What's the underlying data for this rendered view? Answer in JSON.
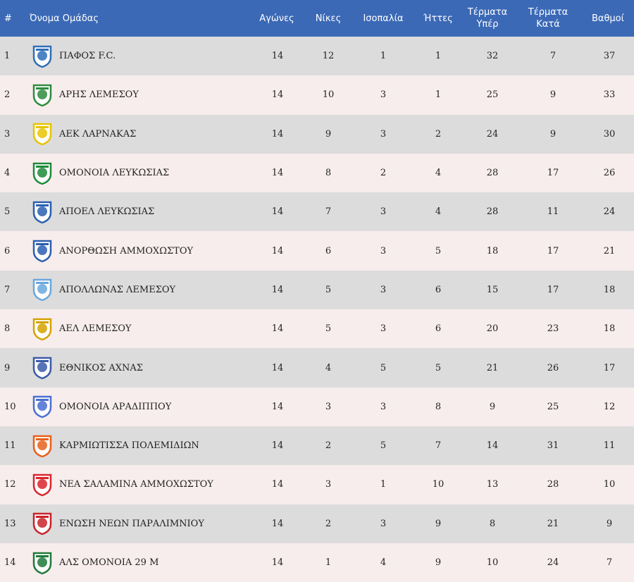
{
  "header": {
    "rank": "#",
    "team": "Όνομα Ομάδας",
    "played": "Αγώνες",
    "won": "Νίκες",
    "drawn": "Ισοπαλία",
    "lost": "Ήττες",
    "goals_for": "Τέρματα Υπέρ",
    "goals_against": "Τέρματα Κατά",
    "points": "Βαθμοί"
  },
  "rows": [
    {
      "rank": "1",
      "team": "ΠΑΦΟΣ F.C.",
      "logo": "pafos-crest-icon",
      "color": "#2f6fb8",
      "played": "14",
      "won": "12",
      "drawn": "1",
      "lost": "1",
      "gf": "32",
      "ga": "7",
      "pts": "37"
    },
    {
      "rank": "2",
      "team": "ΑΡΗΣ ΛΕΜΕΣΟΥ",
      "logo": "aris-crest-icon",
      "color": "#2e8b3e",
      "played": "14",
      "won": "10",
      "drawn": "3",
      "lost": "1",
      "gf": "25",
      "ga": "9",
      "pts": "33"
    },
    {
      "rank": "3",
      "team": "ΑΕΚ ΛΑΡΝΑΚΑΣ",
      "logo": "aek-crest-icon",
      "color": "#e8c400",
      "played": "14",
      "won": "9",
      "drawn": "3",
      "lost": "2",
      "gf": "24",
      "ga": "9",
      "pts": "30"
    },
    {
      "rank": "4",
      "team": "ΟΜΟΝΟΙΑ ΛΕΥΚΩΣΙΑΣ",
      "logo": "omonoia-crest-icon",
      "color": "#1f8a3a",
      "played": "14",
      "won": "8",
      "drawn": "2",
      "lost": "4",
      "gf": "28",
      "ga": "17",
      "pts": "26"
    },
    {
      "rank": "5",
      "team": "ΑΠΟΕΛ ΛΕΥΚΩΣΙΑΣ",
      "logo": "apoel-crest-icon",
      "color": "#2a5fb0",
      "played": "14",
      "won": "7",
      "drawn": "3",
      "lost": "4",
      "gf": "28",
      "ga": "11",
      "pts": "24"
    },
    {
      "rank": "6",
      "team": "ΑΝΟΡΘΩΣΗ ΑΜΜΟΧΩΣΤΟΥ",
      "logo": "anorthosis-crest-icon",
      "color": "#2a5fb0",
      "played": "14",
      "won": "6",
      "drawn": "3",
      "lost": "5",
      "gf": "18",
      "ga": "17",
      "pts": "21"
    },
    {
      "rank": "7",
      "team": "ΑΠΟΛΛΩΝΑΣ ΛΕΜΕΣΟΥ",
      "logo": "apollon-crest-icon",
      "color": "#6aa8dc",
      "played": "14",
      "won": "5",
      "drawn": "3",
      "lost": "6",
      "gf": "15",
      "ga": "17",
      "pts": "18"
    },
    {
      "rank": "8",
      "team": "ΑΕΛ ΛΕΜΕΣΟΥ",
      "logo": "ael-crest-icon",
      "color": "#d4a300",
      "played": "14",
      "won": "5",
      "drawn": "3",
      "lost": "6",
      "gf": "20",
      "ga": "23",
      "pts": "18"
    },
    {
      "rank": "9",
      "team": "ΕΘΝΙΚΟΣ ΑΧΝΑΣ",
      "logo": "ethnikos-crest-icon",
      "color": "#3b5aa8",
      "played": "14",
      "won": "4",
      "drawn": "5",
      "lost": "5",
      "gf": "21",
      "ga": "26",
      "pts": "17"
    },
    {
      "rank": "10",
      "team": "ΟΜΟΝΟΙΑ ΑΡΑΔΙΠΠΟΥ",
      "logo": "omonoia-aradippou-crest-icon",
      "color": "#4a6fd0",
      "played": "14",
      "won": "3",
      "drawn": "3",
      "lost": "8",
      "gf": "9",
      "ga": "25",
      "pts": "12"
    },
    {
      "rank": "11",
      "team": "ΚΑΡΜΙΩΤΙΣΣΑ ΠΟΛΕΜΙΔΙΩΝ",
      "logo": "karmiotissa-crest-icon",
      "color": "#e8601c",
      "played": "14",
      "won": "2",
      "drawn": "5",
      "lost": "7",
      "gf": "14",
      "ga": "31",
      "pts": "11"
    },
    {
      "rank": "12",
      "team": "ΝΕΑ ΣΑΛΑΜΙΝΑ ΑΜΜΟΧΩΣΤΟΥ",
      "logo": "nea-salamina-crest-icon",
      "color": "#d9262b",
      "played": "14",
      "won": "3",
      "drawn": "1",
      "lost": "10",
      "gf": "13",
      "ga": "28",
      "pts": "10"
    },
    {
      "rank": "13",
      "team": "ΕΝΩΣΗ ΝΕΩΝ ΠΑΡΑΛΙΜΝΙΟΥ",
      "logo": "enp-crest-icon",
      "color": "#c8242c",
      "played": "14",
      "won": "2",
      "drawn": "3",
      "lost": "9",
      "gf": "8",
      "ga": "21",
      "pts": "9"
    },
    {
      "rank": "14",
      "team": "ΑΛΣ ΟΜΟΝΟΙΑ 29 Μ",
      "logo": "als-omonoia-crest-icon",
      "color": "#1f7a3a",
      "played": "14",
      "won": "1",
      "drawn": "4",
      "lost": "9",
      "gf": "10",
      "ga": "24",
      "pts": "7"
    }
  ]
}
